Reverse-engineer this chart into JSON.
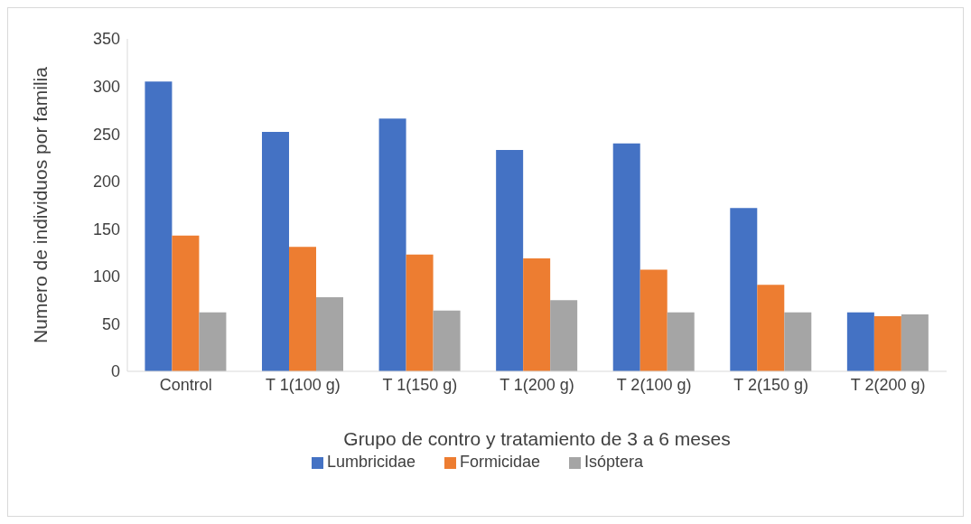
{
  "chart_data": {
    "type": "bar",
    "xlabel": "Grupo de contro y tratamiento de 3 a 6 meses",
    "ylabel": "Numero de individuos por familia",
    "categories": [
      "Control",
      "T 1(100 g)",
      "T 1(150 g)",
      "T 1(200 g)",
      "T 2(100 g)",
      "T 2(150 g)",
      "T 2(200 g)"
    ],
    "series": [
      {
        "name": "Lumbricidae",
        "color": "#4472c4",
        "values": [
          305,
          252,
          266,
          233,
          240,
          172,
          62
        ]
      },
      {
        "name": "Formicidae",
        "color": "#ed7d31",
        "values": [
          143,
          131,
          123,
          119,
          107,
          91,
          58
        ]
      },
      {
        "name": "Isóptera",
        "color": "#a5a5a5",
        "values": [
          62,
          78,
          64,
          75,
          62,
          62,
          60
        ]
      }
    ],
    "ylim": [
      0,
      350
    ],
    "yticks": [
      0,
      50,
      100,
      150,
      200,
      250,
      300,
      350
    ],
    "grid": false,
    "legend": "bottom"
  }
}
